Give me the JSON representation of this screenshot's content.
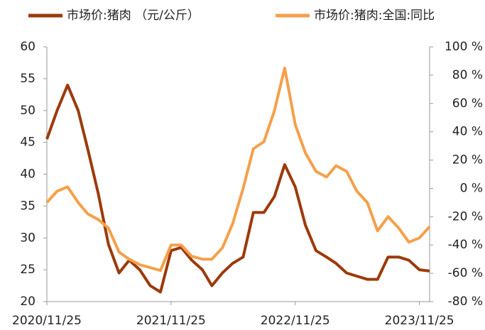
{
  "chart_data": {
    "type": "line",
    "x": [
      "2020/11/25",
      "2020/12/25",
      "2021/01/25",
      "2021/02/25",
      "2021/03/25",
      "2021/04/25",
      "2021/05/25",
      "2021/06/25",
      "2021/07/25",
      "2021/08/25",
      "2021/09/25",
      "2021/10/25",
      "2021/11/25",
      "2021/12/25",
      "2022/01/25",
      "2022/02/25",
      "2022/03/25",
      "2022/04/25",
      "2022/05/25",
      "2022/06/25",
      "2022/07/25",
      "2022/08/25",
      "2022/09/25",
      "2022/10/25",
      "2022/11/25",
      "2022/12/25",
      "2023/01/25",
      "2023/02/25",
      "2023/03/25",
      "2023/04/25",
      "2023/05/25",
      "2023/06/25",
      "2023/07/25",
      "2023/08/25",
      "2023/09/25",
      "2023/10/25",
      "2023/11/25",
      "2023/12/25"
    ],
    "series": [
      {
        "name": "市场价:猪肉 （元/公斤）",
        "color": "#9c3a0b",
        "values": [
          45.5,
          50,
          54,
          50,
          44,
          37,
          29,
          24.5,
          26.5,
          25,
          22.5,
          21.5,
          28,
          28.5,
          26.5,
          25,
          22.5,
          24.5,
          26,
          27,
          34,
          34,
          36.5,
          41.5,
          38,
          32,
          28,
          27,
          26,
          24.5,
          24,
          23.5,
          23.5,
          27,
          27,
          26.5,
          25,
          24.8
        ]
      },
      {
        "name": "市场价:猪肉:全国:同比",
        "color": "#f5a04a",
        "axis": "y2",
        "values": [
          -10,
          -2,
          1,
          -10,
          -18,
          -22,
          -28,
          -45,
          -50,
          -54,
          -56,
          -58,
          -40,
          -40,
          -48,
          -50,
          -50,
          -42,
          -25,
          0,
          28,
          33,
          55,
          85,
          45,
          25,
          12,
          8,
          16,
          12,
          -2,
          -10,
          -30,
          -20,
          -28,
          -38,
          -35,
          -27
        ]
      }
    ],
    "xlim": [
      "2020/11/25",
      "2023/12/25"
    ],
    "xticks": [
      "2020/11/25",
      "2021/11/25",
      "2022/11/25",
      "2023/11/25"
    ],
    "ylim": [
      20,
      60
    ],
    "yticks": [
      20,
      25,
      30,
      35,
      40,
      45,
      50,
      55,
      60
    ],
    "y2lim": [
      -80,
      100
    ],
    "y2ticks": [
      {
        "value": -80,
        "label": "-80 %"
      },
      {
        "value": -60,
        "label": "-60 %"
      },
      {
        "value": -40,
        "label": "-40 %"
      },
      {
        "value": -20,
        "label": "-20 %"
      },
      {
        "value": 0,
        "label": "0 %"
      },
      {
        "value": 20,
        "label": "20 %"
      },
      {
        "value": 40,
        "label": "40 %"
      },
      {
        "value": 60,
        "label": "60 %"
      },
      {
        "value": 80,
        "label": "80 %"
      },
      {
        "value": 100,
        "label": "100 %"
      }
    ],
    "legend": "top"
  }
}
